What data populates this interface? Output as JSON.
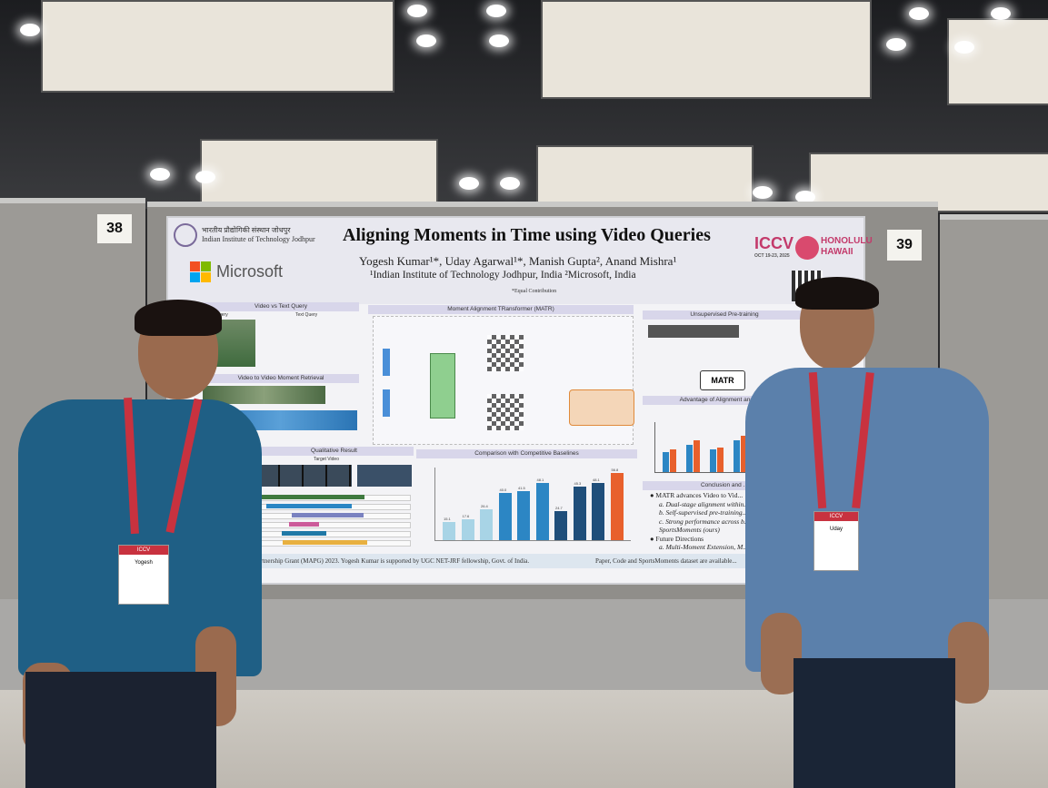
{
  "scene": {
    "board_numbers": [
      "38",
      "39"
    ]
  },
  "poster": {
    "institute_hindi": "भारतीय प्रौद्योगिकी संस्थान जोधपुर",
    "institute_english": "Indian Institute of Technology Jodhpur",
    "sponsor": "Microsoft",
    "title": "Aligning Moments in Time using Video Queries",
    "authors": "Yogesh Kumar¹*, Uday Agarwal¹*, Manish Gupta², Anand Mishra¹",
    "affiliations": "¹Indian Institute of Technology Jodhpur, India    ²Microsoft, India",
    "equal_contribution": "*Equal Contribution",
    "conference": "ICCV",
    "conference_dates": "OCT 19-23, 2025",
    "conference_location": "HONOLULU HAWAII",
    "sections": {
      "video_vs_text": "Video vs Text Query",
      "video_query": "Video Query",
      "text_query": "Text Query",
      "vmr": "Video to Video Moment Retrieval",
      "matr": "Moment Alignment TRansformer (MATR)",
      "pretraining": "Unsupervised Pre-training",
      "advantage": "Advantage of Alignment and Pre...",
      "qualitative": "Qualitative Result",
      "target_video": "Target Video",
      "comparison": "Comparison with Competitive Baselines",
      "conclusion": "Conclusion and ..."
    },
    "matr_box": "MATR",
    "comparison_values": [
      15.1,
      17.6,
      26.4,
      40.0,
      41.5,
      48.1,
      24.7,
      45.3,
      48.1,
      56.8
    ],
    "conclusion": {
      "bullet1": "MATR advances Video to Vid...",
      "items": [
        "a. Dual-stage alignment within...",
        "b. Self-supervised pre-training...",
        "c. Strong performance across b...",
        "SportsMoments (ours)"
      ],
      "bullet2": "Future Directions",
      "future": "a. Multi-Moment Extension, M..."
    },
    "footer_left": "...the Microsoft Academic Partnership Grant (MAPG) 2023. Yogesh Kumar is supported by UGC NET-JRF fellowship, Govt. of India.",
    "footer_right": "Paper, Code and SportsMoments dataset are available..."
  },
  "people": {
    "left_badge": "Yogesh",
    "right_badge": "Uday"
  },
  "colors": {
    "shirt_left": "#1f5f85",
    "shirt_right": "#5b80ab",
    "lanyard": "#c8323f",
    "accent_pink": "#c33a6b"
  }
}
